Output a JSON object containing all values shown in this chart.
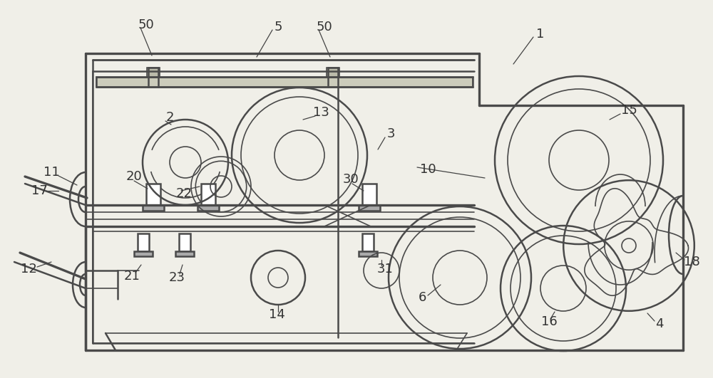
{
  "bg_color": "#f0efe8",
  "line_color": "#4a4a4a",
  "lw_thin": 1.2,
  "lw_med": 1.8,
  "lw_thick": 2.4,
  "figw": 10.0,
  "figh": 5.31,
  "dpi": 100,
  "xmin": 0,
  "xmax": 1000,
  "ymin": 0,
  "ymax": 531
}
